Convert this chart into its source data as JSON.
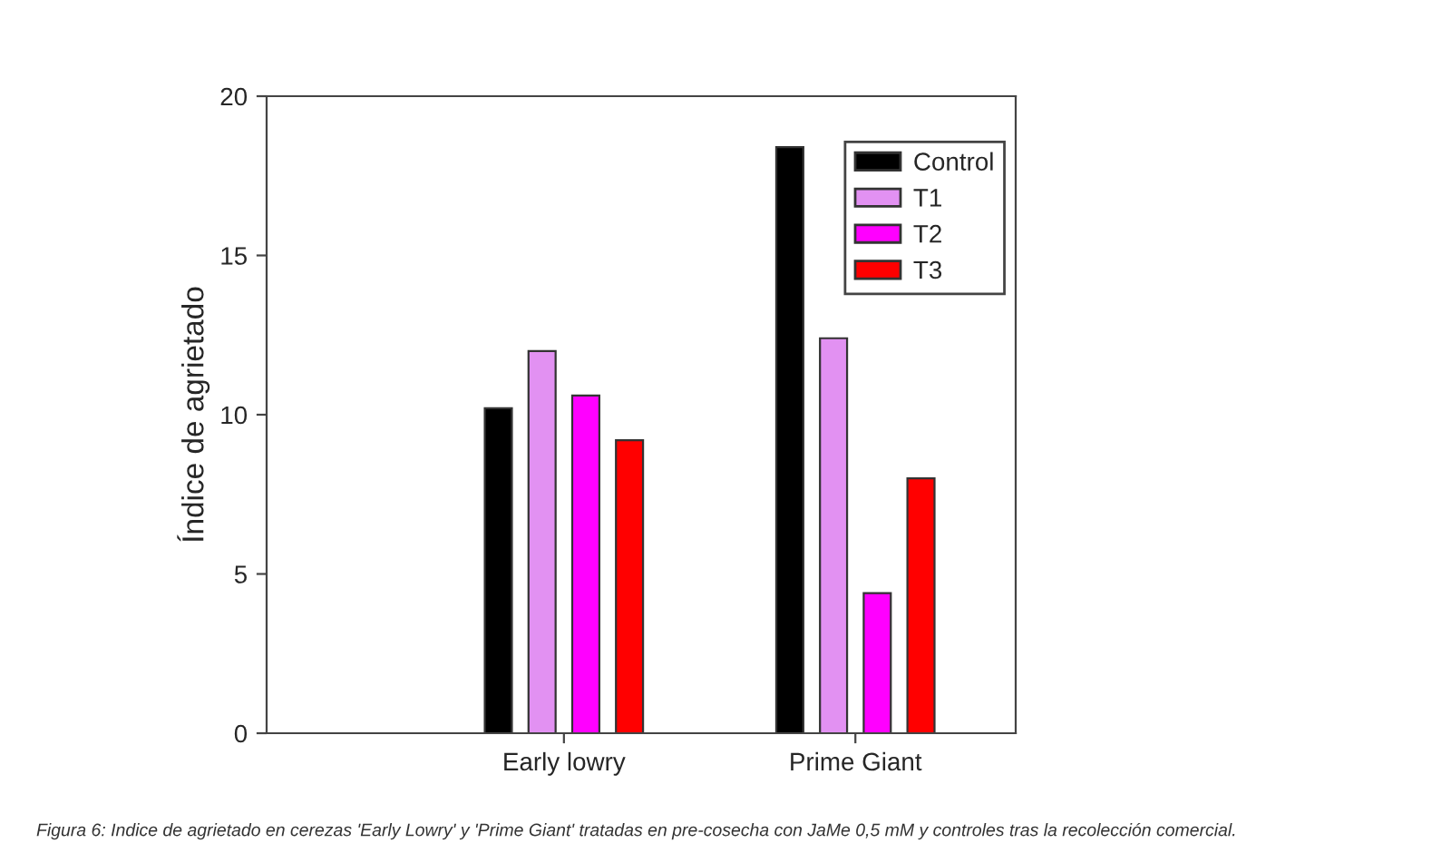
{
  "chart_data": {
    "type": "bar",
    "ylabel": "Índice de agrietado",
    "categories": [
      "Early lowry",
      "Prime Giant"
    ],
    "series": [
      {
        "name": "Control",
        "color": "#000000",
        "values": [
          10.2,
          18.4
        ]
      },
      {
        "name": "T1",
        "color": "#e291f2",
        "values": [
          12.0,
          12.4
        ]
      },
      {
        "name": "T2",
        "color": "#ff00ff",
        "values": [
          10.6,
          4.4
        ]
      },
      {
        "name": "T3",
        "color": "#ff0000",
        "values": [
          9.2,
          8.0
        ]
      }
    ],
    "ylim": [
      0,
      20
    ],
    "yticks": [
      0,
      5,
      10,
      15,
      20
    ],
    "grid": false,
    "legend": "top right",
    "annotations": [
      "Figura 6: Indice de agrietado en cerezas 'Early Lowry' y 'Prime Giant' tratadas en pre-cosecha con JaMe 0,5 mM y controles tras la recolección comercial."
    ]
  }
}
